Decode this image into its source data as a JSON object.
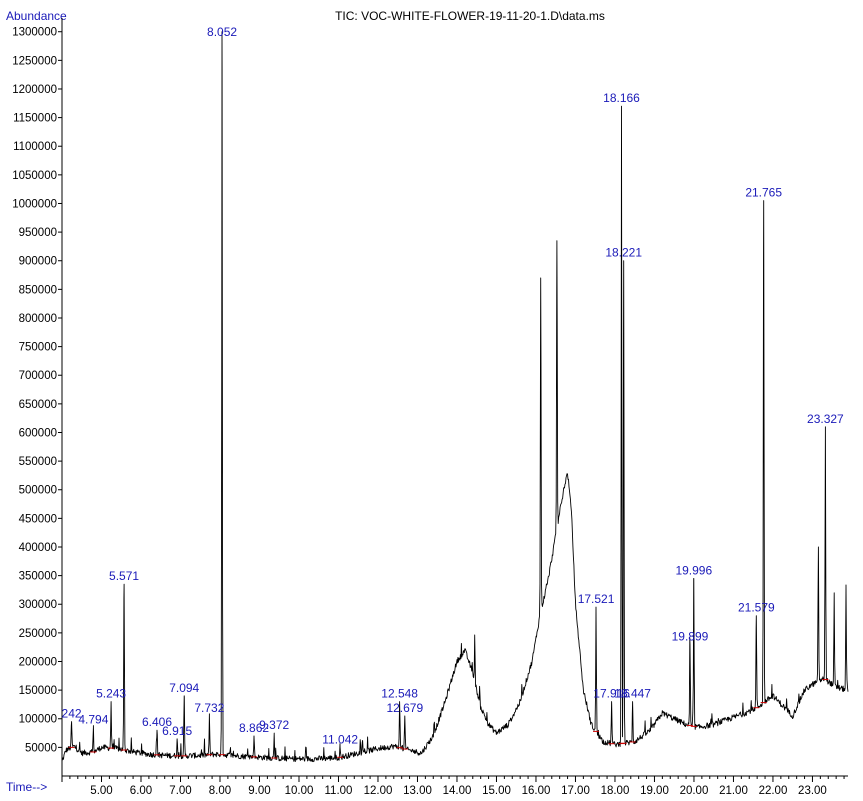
{
  "chart_data": {
    "type": "line",
    "title": "TIC: VOC-WHITE-FLOWER-19-11-20-1.D\\data.ms",
    "ylabel": "Abundance",
    "xlabel": "Time-->",
    "xlim": [
      4.0,
      23.9
    ],
    "ylim": [
      0,
      1310000
    ],
    "y_ticks": [
      50000,
      100000,
      150000,
      200000,
      250000,
      300000,
      350000,
      400000,
      450000,
      500000,
      550000,
      600000,
      650000,
      700000,
      750000,
      800000,
      850000,
      900000,
      950000,
      1000000,
      1050000,
      1100000,
      1150000,
      1200000,
      1250000,
      1300000
    ],
    "x_ticks": [
      "5.00",
      "6.00",
      "7.00",
      "8.00",
      "9.00",
      "10.00",
      "11.00",
      "12.00",
      "13.00",
      "14.00",
      "15.00",
      "16.00",
      "17.00",
      "18.00",
      "19.00",
      "20.00",
      "21.00",
      "22.00",
      "23.00"
    ],
    "x_tick_values": [
      5,
      6,
      7,
      8,
      9,
      10,
      11,
      12,
      13,
      14,
      15,
      16,
      17,
      18,
      19,
      20,
      21,
      22,
      23
    ],
    "grid": false,
    "baseline_points": [
      [
        4.0,
        25000
      ],
      [
        4.1,
        45000
      ],
      [
        4.3,
        52000
      ],
      [
        4.5,
        40000
      ],
      [
        4.8,
        42000
      ],
      [
        5.0,
        50000
      ],
      [
        5.4,
        48000
      ],
      [
        5.8,
        42000
      ],
      [
        6.2,
        38000
      ],
      [
        6.6,
        36000
      ],
      [
        7.0,
        35000
      ],
      [
        7.5,
        36000
      ],
      [
        7.9,
        38000
      ],
      [
        8.3,
        36000
      ],
      [
        8.7,
        34000
      ],
      [
        9.2,
        32000
      ],
      [
        9.8,
        30000
      ],
      [
        10.4,
        30000
      ],
      [
        11.0,
        32000
      ],
      [
        11.5,
        40000
      ],
      [
        12.0,
        48000
      ],
      [
        12.4,
        52000
      ],
      [
        12.8,
        45000
      ],
      [
        13.1,
        40000
      ],
      [
        13.4,
        70000
      ],
      [
        13.7,
        130000
      ],
      [
        14.0,
        200000
      ],
      [
        14.2,
        220000
      ],
      [
        14.4,
        180000
      ],
      [
        14.6,
        120000
      ],
      [
        14.8,
        90000
      ],
      [
        15.0,
        75000
      ],
      [
        15.3,
        90000
      ],
      [
        15.6,
        130000
      ],
      [
        15.9,
        200000
      ],
      [
        16.1,
        280000
      ],
      [
        16.3,
        340000
      ],
      [
        16.5,
        420000
      ],
      [
        16.7,
        500000
      ],
      [
        16.8,
        530000
      ],
      [
        16.9,
        460000
      ],
      [
        17.0,
        300000
      ],
      [
        17.2,
        150000
      ],
      [
        17.4,
        90000
      ],
      [
        17.7,
        60000
      ],
      [
        18.0,
        55000
      ],
      [
        18.5,
        60000
      ],
      [
        18.9,
        80000
      ],
      [
        19.2,
        110000
      ],
      [
        19.5,
        100000
      ],
      [
        19.8,
        90000
      ],
      [
        20.1,
        85000
      ],
      [
        20.5,
        90000
      ],
      [
        20.9,
        100000
      ],
      [
        21.3,
        110000
      ],
      [
        21.6,
        120000
      ],
      [
        22.0,
        140000
      ],
      [
        22.5,
        105000
      ],
      [
        22.8,
        150000
      ],
      [
        23.0,
        160000
      ],
      [
        23.3,
        170000
      ],
      [
        23.6,
        155000
      ],
      [
        23.9,
        150000
      ]
    ],
    "peaks": [
      {
        "x": 4.242,
        "y": 95000
      },
      {
        "x": 4.794,
        "y": 85000
      },
      {
        "x": 5.243,
        "y": 130000
      },
      {
        "x": 5.571,
        "y": 335000
      },
      {
        "x": 6.406,
        "y": 80000
      },
      {
        "x": 6.915,
        "y": 65000
      },
      {
        "x": 7.094,
        "y": 140000
      },
      {
        "x": 7.732,
        "y": 105000
      },
      {
        "x": 8.052,
        "y": 1300000
      },
      {
        "x": 8.862,
        "y": 70000
      },
      {
        "x": 9.372,
        "y": 75000
      },
      {
        "x": 11.042,
        "y": 50000
      },
      {
        "x": 12.548,
        "y": 130000
      },
      {
        "x": 12.679,
        "y": 105000
      },
      {
        "x": 14.45,
        "y": 245000
      },
      {
        "x": 16.12,
        "y": 870000
      },
      {
        "x": 16.53,
        "y": 935000
      },
      {
        "x": 17.521,
        "y": 295000
      },
      {
        "x": 17.916,
        "y": 130000
      },
      {
        "x": 18.166,
        "y": 1170000
      },
      {
        "x": 18.221,
        "y": 900000
      },
      {
        "x": 18.447,
        "y": 130000
      },
      {
        "x": 19.899,
        "y": 230000
      },
      {
        "x": 19.996,
        "y": 345000
      },
      {
        "x": 21.579,
        "y": 280000
      },
      {
        "x": 21.765,
        "y": 1005000
      },
      {
        "x": 23.15,
        "y": 400000
      },
      {
        "x": 23.327,
        "y": 610000
      },
      {
        "x": 23.55,
        "y": 320000
      },
      {
        "x": 23.85,
        "y": 330000
      }
    ],
    "peak_labels": [
      {
        "text": "242",
        "x": 4.242,
        "y": 95000
      },
      {
        "text": "4.794",
        "x": 4.794,
        "y": 85000
      },
      {
        "text": "5.243",
        "x": 5.243,
        "y": 130000
      },
      {
        "text": "5.571",
        "x": 5.571,
        "y": 335000
      },
      {
        "text": "6.406",
        "x": 6.406,
        "y": 80000
      },
      {
        "text": "6.915",
        "x": 6.915,
        "y": 65000
      },
      {
        "text": "7.094",
        "x": 7.094,
        "y": 140000
      },
      {
        "text": "7.732",
        "x": 7.732,
        "y": 105000
      },
      {
        "text": "8.052",
        "x": 8.052,
        "y": 1300000
      },
      {
        "text": "8.862",
        "x": 8.862,
        "y": 70000
      },
      {
        "text": "9.372",
        "x": 9.372,
        "y": 75000
      },
      {
        "text": "11.042",
        "x": 11.042,
        "y": 50000
      },
      {
        "text": "12.548",
        "x": 12.548,
        "y": 130000
      },
      {
        "text": "12.679",
        "x": 12.679,
        "y": 105000
      },
      {
        "text": "17.521",
        "x": 17.521,
        "y": 295000
      },
      {
        "text": "17.916",
        "x": 17.916,
        "y": 130000
      },
      {
        "text": "18.166",
        "x": 18.166,
        "y": 1170000
      },
      {
        "text": "18.221",
        "x": 18.221,
        "y": 900000
      },
      {
        "text": "18.447",
        "x": 18.447,
        "y": 130000
      },
      {
        "text": "19.899",
        "x": 19.899,
        "y": 230000
      },
      {
        "text": "19.996",
        "x": 19.996,
        "y": 345000
      },
      {
        "text": "21.579",
        "x": 21.579,
        "y": 280000
      },
      {
        "text": "21.765",
        "x": 21.765,
        "y": 1005000
      },
      {
        "text": "23.327",
        "x": 23.327,
        "y": 610000
      }
    ],
    "colors": {
      "trace": "#000000",
      "labels": "#1a1ab8",
      "axis": "#000000",
      "integration": "#cc0000"
    }
  }
}
